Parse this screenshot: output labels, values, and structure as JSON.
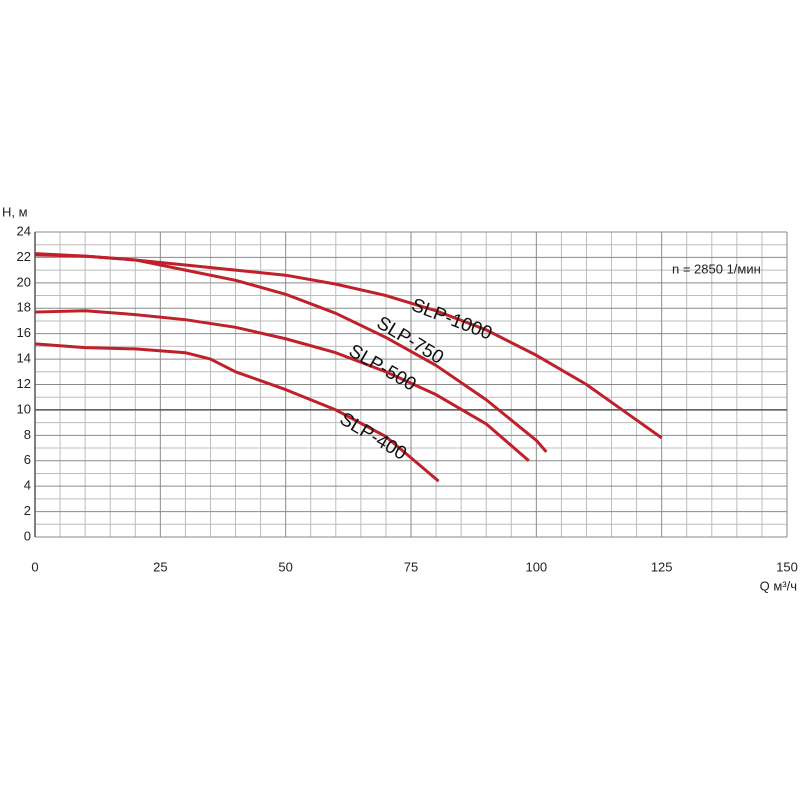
{
  "chart_data": {
    "type": "line",
    "y_label": "H, м",
    "x_label": "Q м³/ч",
    "annotation": "n = 2850 1/мин",
    "xlim": [
      0,
      150
    ],
    "xticks": [
      0,
      25,
      50,
      75,
      100,
      125,
      150
    ],
    "ylim": [
      0,
      24
    ],
    "yticks": [
      0,
      2,
      4,
      6,
      8,
      10,
      12,
      14,
      16,
      18,
      20,
      22,
      24
    ],
    "grid": true,
    "reference_lines": [
      10
    ],
    "series": [
      {
        "name": "SLP-1000",
        "color": "#c0202a",
        "x": [
          0,
          10,
          20,
          30,
          40,
          50,
          60,
          70,
          80,
          90,
          100,
          110,
          120,
          125
        ],
        "values": [
          22.3,
          22.1,
          21.8,
          21.4,
          21.0,
          20.6,
          19.9,
          19.0,
          17.8,
          16.3,
          14.3,
          12.0,
          9.2,
          7.8
        ]
      },
      {
        "name": "SLP-750",
        "color": "#c0202a",
        "x": [
          0,
          10,
          20,
          30,
          40,
          50,
          60,
          70,
          80,
          90,
          100,
          102
        ],
        "values": [
          22.2,
          22.1,
          21.8,
          21.0,
          20.2,
          19.1,
          17.6,
          15.7,
          13.5,
          10.8,
          7.6,
          6.7
        ]
      },
      {
        "name": "SLP-500",
        "color": "#c0202a",
        "x": [
          0,
          10,
          20,
          30,
          40,
          50,
          60,
          70,
          80,
          90,
          98.5
        ],
        "values": [
          17.7,
          17.8,
          17.5,
          17.1,
          16.5,
          15.6,
          14.5,
          13.0,
          11.2,
          8.9,
          6.0
        ]
      },
      {
        "name": "SLP-400",
        "color": "#c0202a",
        "x": [
          0,
          10,
          20,
          30,
          35,
          40,
          50,
          60,
          70,
          80.5
        ],
        "values": [
          15.2,
          14.9,
          14.8,
          14.5,
          14.0,
          13.0,
          11.6,
          10.0,
          7.9,
          4.4
        ]
      }
    ]
  }
}
